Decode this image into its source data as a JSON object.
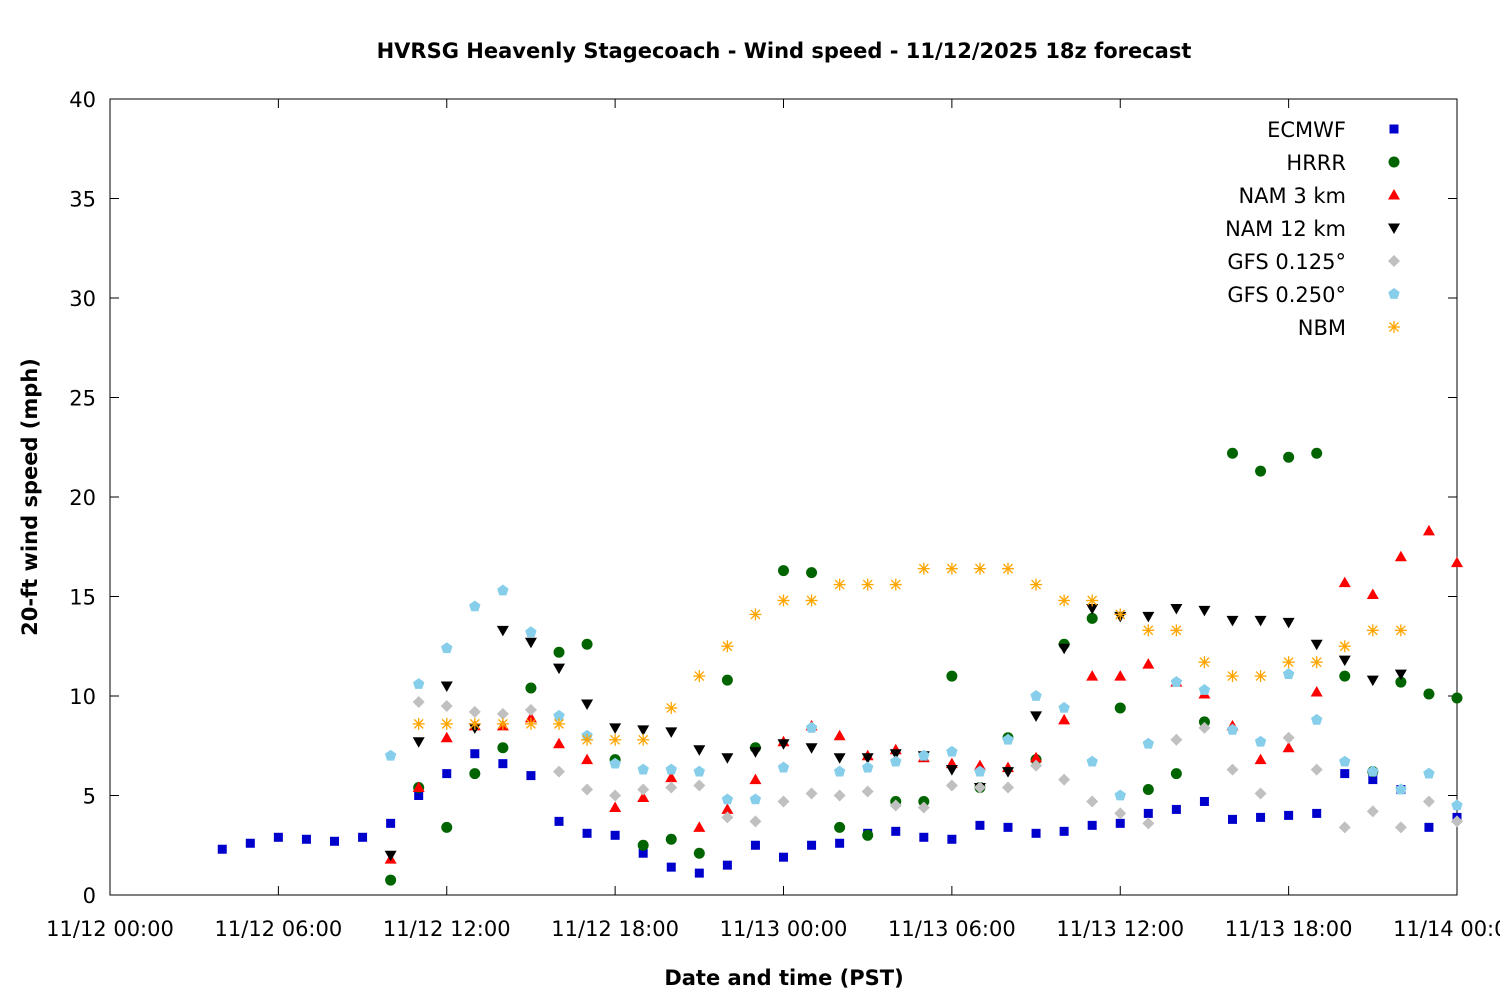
{
  "chart_data": {
    "type": "scatter",
    "title": "HVRSG Heavenly Stagecoach - Wind speed - 11/12/2025 18z forecast",
    "xlabel": "Date and time (PST)",
    "ylabel": "20-ft wind speed (mph)",
    "x_units": "hours since 11/12 00:00 PST",
    "xlim": [
      0,
      48
    ],
    "ylim": [
      0,
      40
    ],
    "x_ticks": [
      {
        "value": 0,
        "label": "11/12 00:00"
      },
      {
        "value": 6,
        "label": "11/12 06:00"
      },
      {
        "value": 12,
        "label": "11/12 12:00"
      },
      {
        "value": 18,
        "label": "11/12 18:00"
      },
      {
        "value": 24,
        "label": "11/13 00:00"
      },
      {
        "value": 30,
        "label": "11/13 06:00"
      },
      {
        "value": 36,
        "label": "11/13 12:00"
      },
      {
        "value": 42,
        "label": "11/13 18:00"
      },
      {
        "value": 48,
        "label": "11/14 00:00"
      }
    ],
    "y_ticks": [
      "0",
      "5",
      "10",
      "15",
      "20",
      "25",
      "30",
      "35",
      "40"
    ],
    "legend_position": "top-right",
    "grid": false,
    "series": [
      {
        "name": "ECMWF",
        "marker": "square",
        "color": "#0000cc",
        "x_start": 4,
        "values": [
          2.3,
          2.6,
          2.9,
          2.8,
          2.7,
          2.9,
          3.6,
          5.0,
          6.1,
          7.1,
          6.6,
          6.0,
          3.7,
          3.1,
          3.0,
          2.1,
          1.4,
          1.1,
          1.5,
          2.5,
          1.9,
          2.5,
          2.6,
          3.1,
          3.2,
          2.9,
          2.8,
          3.5,
          3.4,
          3.1,
          3.2,
          3.5,
          3.6,
          4.1,
          4.3,
          4.7,
          3.8,
          3.9,
          4.0,
          4.1,
          6.1,
          5.8,
          5.3,
          3.4,
          3.9
        ]
      },
      {
        "name": "HRRR",
        "marker": "circle",
        "color": "#006400",
        "x_start": 10,
        "values": [
          0.75,
          5.4,
          3.4,
          6.1,
          7.4,
          10.4,
          12.2,
          12.6,
          6.8,
          2.5,
          2.8,
          2.1,
          10.8,
          7.4,
          16.3,
          16.2,
          3.4,
          3.0,
          4.7,
          4.7,
          11.0,
          5.4,
          7.9,
          6.8,
          12.6,
          13.9,
          9.4,
          5.3,
          6.1,
          8.7,
          22.2,
          21.3,
          22.0,
          22.2,
          11.0,
          6.2,
          10.7,
          10.1,
          9.9
        ]
      },
      {
        "name": "NAM 3 km",
        "marker": "triangle-up",
        "color": "#ff0000",
        "x_start": 10,
        "values": [
          1.8,
          5.4,
          7.9,
          8.5,
          8.5,
          8.9,
          7.6,
          6.8,
          4.4,
          4.9,
          5.9,
          3.4,
          4.3,
          5.8,
          7.7,
          8.5,
          8.0,
          7.0,
          7.3,
          6.9,
          6.6,
          6.5,
          6.4,
          6.9,
          8.8,
          11.0,
          11.0,
          11.6,
          10.7,
          10.1,
          8.5,
          6.8,
          7.4,
          10.2,
          15.7,
          15.1,
          17.0,
          18.3,
          16.7
        ]
      },
      {
        "name": "NAM 12 km",
        "marker": "triangle-down",
        "color": "#000000",
        "x_start": 10,
        "values": [
          2.0,
          7.7,
          10.5,
          8.4,
          13.3,
          12.7,
          11.4,
          9.6,
          8.4,
          8.3,
          8.2,
          7.3,
          6.9,
          7.2,
          7.6,
          7.4,
          6.9,
          6.9,
          7.1,
          7.0,
          6.3,
          5.4,
          6.2,
          9.0,
          12.4,
          14.4,
          14.0,
          14.0,
          14.4,
          14.3,
          13.8,
          13.8,
          13.7,
          12.6,
          11.8,
          10.8,
          11.1
        ]
      },
      {
        "name": "GFS 0.125°",
        "marker": "diamond",
        "color": "#c0c0c0",
        "x_start": 11,
        "values": [
          9.7,
          9.5,
          9.2,
          9.1,
          9.3,
          6.2,
          5.3,
          5.0,
          5.3,
          5.4,
          5.5,
          3.9,
          3.7,
          4.7,
          5.1,
          5.0,
          5.2,
          4.5,
          4.4,
          5.5,
          5.4,
          5.4,
          6.5,
          5.8,
          4.7,
          4.1,
          3.6,
          7.8,
          8.4,
          6.3,
          5.1,
          7.9,
          6.3,
          3.4,
          4.2,
          3.4,
          4.7,
          3.7
        ]
      },
      {
        "name": "GFS 0.250°",
        "marker": "pentagon",
        "color": "#87ceeb",
        "x_start": 10,
        "values": [
          7.0,
          10.6,
          12.4,
          14.5,
          15.3,
          13.2,
          9.0,
          8.0,
          6.6,
          6.3,
          6.3,
          6.2,
          4.8,
          4.8,
          6.4,
          8.4,
          6.2,
          6.4,
          6.7,
          7.0,
          7.2,
          6.2,
          7.8,
          10.0,
          9.4,
          6.7,
          5.0,
          7.6,
          10.7,
          10.3,
          8.3,
          7.7,
          11.1,
          8.8,
          6.7,
          6.2,
          5.3,
          6.1,
          4.5
        ]
      },
      {
        "name": "NBM",
        "marker": "asterisk",
        "color": "#ffa500",
        "x_start": 11,
        "values": [
          8.6,
          8.6,
          8.6,
          8.6,
          8.6,
          8.6,
          7.8,
          7.8,
          7.8,
          9.4,
          11.0,
          12.5,
          14.1,
          14.8,
          14.8,
          15.6,
          15.6,
          15.6,
          16.4,
          16.4,
          16.4,
          16.4,
          15.6,
          14.8,
          14.8,
          14.1,
          13.3,
          13.3,
          11.7,
          11.0,
          11.0,
          11.7,
          11.7,
          12.5,
          13.3,
          13.3
        ]
      }
    ]
  }
}
